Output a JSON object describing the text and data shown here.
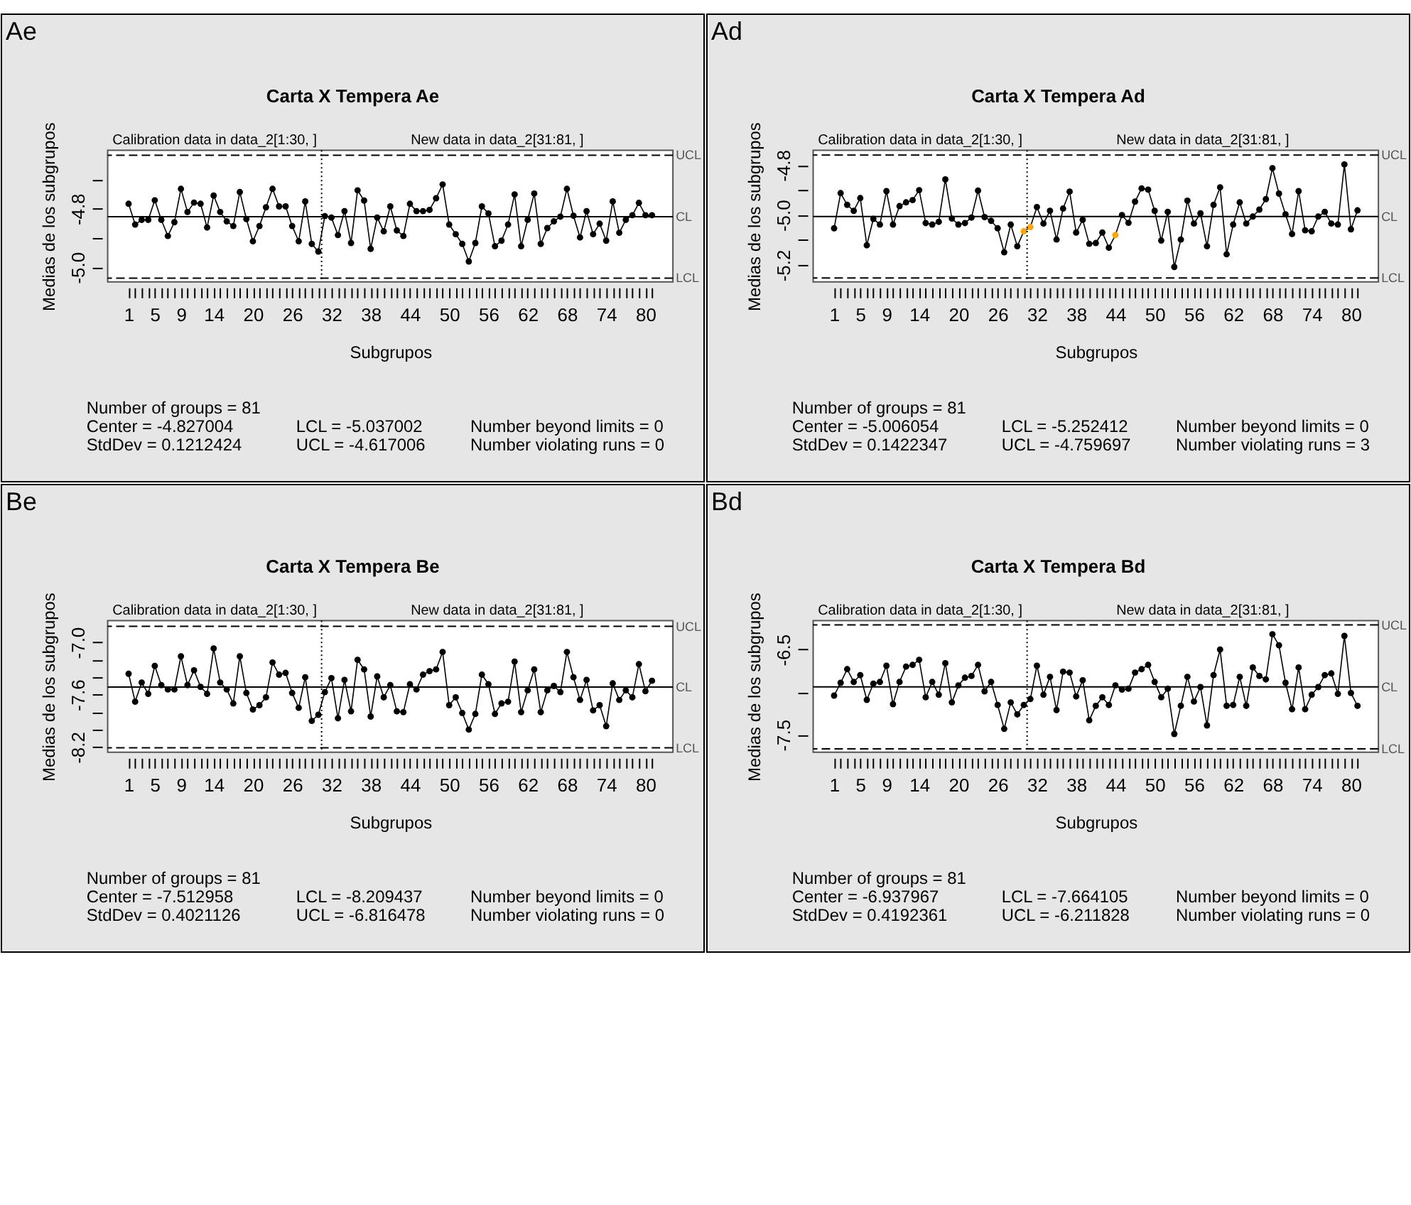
{
  "chart_data": [
    {
      "type": "line",
      "title": "Carta X Tempera Ae",
      "xlabel": "Subgrupos",
      "ylabel": "Medias de los subgrupos",
      "marker": "circle",
      "line_style": "solid",
      "x": [
        1,
        2,
        3,
        4,
        5,
        6,
        7,
        8,
        9,
        10,
        11,
        12,
        13,
        14,
        15,
        16,
        17,
        18,
        19,
        20,
        21,
        22,
        23,
        24,
        25,
        26,
        27,
        28,
        29,
        30,
        31,
        32,
        33,
        34,
        35,
        36,
        37,
        38,
        39,
        40,
        41,
        42,
        43,
        44,
        45,
        46,
        47,
        48,
        49,
        50,
        51,
        52,
        53,
        54,
        55,
        56,
        57,
        58,
        59,
        60,
        61,
        62,
        63,
        64,
        65,
        66,
        67,
        68,
        69,
        70,
        71,
        72,
        73,
        74,
        75,
        76,
        77,
        78,
        79,
        80,
        81
      ],
      "xlim": [
        -2.2,
        84.2
      ],
      "xticks": [
        1,
        {
          "value": 2,
          "label": null
        },
        {
          "value": 3,
          "label": null
        },
        {
          "value": 4,
          "label": null
        },
        5,
        {
          "value": 6,
          "label": null
        },
        {
          "value": 7,
          "label": null
        },
        {
          "value": 8,
          "label": null
        },
        9,
        {
          "value": 10,
          "label": null
        },
        {
          "value": 11,
          "label": null
        },
        {
          "value": 12,
          "label": null
        },
        {
          "value": 13,
          "label": null
        },
        14,
        {
          "value": 15,
          "label": null
        },
        {
          "value": 16,
          "label": null
        },
        {
          "value": 17,
          "label": null
        },
        {
          "value": 18,
          "label": null
        },
        {
          "value": 19,
          "label": null
        },
        20,
        {
          "value": 21,
          "label": null
        },
        {
          "value": 22,
          "label": null
        },
        {
          "value": 23,
          "label": null
        },
        {
          "value": 24,
          "label": null
        },
        {
          "value": 25,
          "label": null
        },
        26,
        {
          "value": 27,
          "label": null
        },
        {
          "value": 28,
          "label": null
        },
        {
          "value": 29,
          "label": null
        },
        {
          "value": 30,
          "label": null
        },
        {
          "value": 31,
          "label": null
        },
        32,
        {
          "value": 33,
          "label": null
        },
        {
          "value": 34,
          "label": null
        },
        {
          "value": 35,
          "label": null
        },
        {
          "value": 36,
          "label": null
        },
        {
          "value": 37,
          "label": null
        },
        38,
        {
          "value": 39,
          "label": null
        },
        {
          "value": 40,
          "label": null
        },
        {
          "value": 41,
          "label": null
        },
        {
          "value": 42,
          "label": null
        },
        {
          "value": 43,
          "label": null
        },
        44,
        {
          "value": 45,
          "label": null
        },
        {
          "value": 46,
          "label": null
        },
        {
          "value": 47,
          "label": null
        },
        {
          "value": 48,
          "label": null
        },
        {
          "value": 49,
          "label": null
        },
        50,
        {
          "value": 51,
          "label": null
        },
        {
          "value": 52,
          "label": null
        },
        {
          "value": 53,
          "label": null
        },
        {
          "value": 54,
          "label": null
        },
        {
          "value": 55,
          "label": null
        },
        56,
        {
          "value": 57,
          "label": null
        },
        {
          "value": 58,
          "label": null
        },
        {
          "value": 59,
          "label": null
        },
        {
          "value": 60,
          "label": null
        },
        {
          "value": 61,
          "label": null
        },
        62,
        {
          "value": 63,
          "label": null
        },
        {
          "value": 64,
          "label": null
        },
        {
          "value": 65,
          "label": null
        },
        {
          "value": 66,
          "label": null
        },
        {
          "value": 67,
          "label": null
        },
        68,
        {
          "value": 69,
          "label": null
        },
        {
          "value": 70,
          "label": null
        },
        {
          "value": 71,
          "label": null
        },
        {
          "value": 72,
          "label": null
        },
        {
          "value": 73,
          "label": null
        },
        74,
        {
          "value": 75,
          "label": null
        },
        {
          "value": 76,
          "label": null
        },
        {
          "value": 77,
          "label": null
        },
        {
          "value": 78,
          "label": null
        },
        {
          "value": 79,
          "label": null
        },
        80,
        {
          "value": 81,
          "label": null
        }
      ],
      "ylim": [
        -5.05,
        -4.6
      ],
      "yticks": [
        {
          "value": -4.7,
          "label": null
        },
        -4.8,
        {
          "value": -4.9,
          "label": null
        },
        {
          "value": -5.0,
          "label": "-5.0"
        }
      ],
      "ref_lines": [
        {
          "axis": "y",
          "value": -4.827004,
          "label": "CL",
          "line_style": "solid",
          "color": "#000000"
        },
        {
          "axis": "y",
          "value": -4.617006,
          "label": "UCL",
          "line_style": "dashed",
          "color": "#000000"
        },
        {
          "axis": "y",
          "value": -5.037002,
          "label": "LCL",
          "line_style": "dashed",
          "color": "#000000"
        },
        {
          "axis": "x",
          "value": 30.5,
          "line_style": "dotted",
          "color": "#000000"
        }
      ],
      "annotations": [
        "Ae",
        "Calibration data in data_2[1:30, ]",
        "New data in data_2[31:81, ]",
        "Number of groups = 81",
        "Center = -4.827004",
        "StdDev = 0.1212424",
        "LCL = -5.037002",
        "UCL = -4.617006",
        "Number beyond limits = 0",
        "Number violating runs = 0"
      ],
      "series": [
        {
          "color": "#000000",
          "values": [
            -4.783,
            -4.854,
            -4.838,
            -4.838,
            -4.771,
            -4.838,
            -4.893,
            -4.846,
            -4.732,
            -4.811,
            -4.779,
            -4.783,
            -4.864,
            -4.755,
            -4.811,
            -4.843,
            -4.859,
            -4.743,
            -4.835,
            -4.911,
            -4.859,
            -4.795,
            -4.732,
            -4.792,
            -4.792,
            -4.859,
            -4.911,
            -4.775,
            -4.92,
            -4.946,
            -4.825,
            -4.83,
            -4.89,
            -4.808,
            -4.917,
            -4.737,
            -4.772,
            -4.937,
            -4.83,
            -4.877,
            -4.792,
            -4.874,
            -4.893,
            -4.783,
            -4.808,
            -4.808,
            -4.804,
            -4.764,
            -4.717,
            -4.854,
            -4.887,
            -4.92,
            -4.98,
            -4.917,
            -4.792,
            -4.816,
            -4.928,
            -4.909,
            -4.854,
            -4.751,
            -4.928,
            -4.838,
            -4.748,
            -4.92,
            -4.866,
            -4.843,
            -4.827,
            -4.732,
            -4.824,
            -4.898,
            -4.808,
            -4.887,
            -4.851,
            -4.909,
            -4.775,
            -4.882,
            -4.838,
            -4.822,
            -4.78,
            -4.822,
            -4.822
          ]
        }
      ]
    },
    {
      "type": "line",
      "title": "Carta X Tempera Ad",
      "xlabel": "Subgrupos",
      "ylabel": "Medias de los subgrupos",
      "marker": "circle",
      "line_style": "solid",
      "x": [
        1,
        2,
        3,
        4,
        5,
        6,
        7,
        8,
        9,
        10,
        11,
        12,
        13,
        14,
        15,
        16,
        17,
        18,
        19,
        20,
        21,
        22,
        23,
        24,
        25,
        26,
        27,
        28,
        29,
        30,
        31,
        32,
        33,
        34,
        35,
        36,
        37,
        38,
        39,
        40,
        41,
        42,
        43,
        44,
        45,
        46,
        47,
        48,
        49,
        50,
        51,
        52,
        53,
        54,
        55,
        56,
        57,
        58,
        59,
        60,
        61,
        62,
        63,
        64,
        65,
        66,
        67,
        68,
        69,
        70,
        71,
        72,
        73,
        74,
        75,
        76,
        77,
        78,
        79,
        80,
        81
      ],
      "xlim": [
        -2.2,
        84.2
      ],
      "xticks": [
        1,
        {
          "value": 2,
          "label": null
        },
        {
          "value": 3,
          "label": null
        },
        {
          "value": 4,
          "label": null
        },
        5,
        {
          "value": 6,
          "label": null
        },
        {
          "value": 7,
          "label": null
        },
        {
          "value": 8,
          "label": null
        },
        9,
        {
          "value": 10,
          "label": null
        },
        {
          "value": 11,
          "label": null
        },
        {
          "value": 12,
          "label": null
        },
        {
          "value": 13,
          "label": null
        },
        14,
        {
          "value": 15,
          "label": null
        },
        {
          "value": 16,
          "label": null
        },
        {
          "value": 17,
          "label": null
        },
        {
          "value": 18,
          "label": null
        },
        {
          "value": 19,
          "label": null
        },
        20,
        {
          "value": 21,
          "label": null
        },
        {
          "value": 22,
          "label": null
        },
        {
          "value": 23,
          "label": null
        },
        {
          "value": 24,
          "label": null
        },
        {
          "value": 25,
          "label": null
        },
        26,
        {
          "value": 27,
          "label": null
        },
        {
          "value": 28,
          "label": null
        },
        {
          "value": 29,
          "label": null
        },
        {
          "value": 30,
          "label": null
        },
        {
          "value": 31,
          "label": null
        },
        32,
        {
          "value": 33,
          "label": null
        },
        {
          "value": 34,
          "label": null
        },
        {
          "value": 35,
          "label": null
        },
        {
          "value": 36,
          "label": null
        },
        {
          "value": 37,
          "label": null
        },
        38,
        {
          "value": 39,
          "label": null
        },
        {
          "value": 40,
          "label": null
        },
        {
          "value": 41,
          "label": null
        },
        {
          "value": 42,
          "label": null
        },
        {
          "value": 43,
          "label": null
        },
        44,
        {
          "value": 45,
          "label": null
        },
        {
          "value": 46,
          "label": null
        },
        {
          "value": 47,
          "label": null
        },
        {
          "value": 48,
          "label": null
        },
        {
          "value": 49,
          "label": null
        },
        50,
        {
          "value": 51,
          "label": null
        },
        {
          "value": 52,
          "label": null
        },
        {
          "value": 53,
          "label": null
        },
        {
          "value": 54,
          "label": null
        },
        {
          "value": 55,
          "label": null
        },
        56,
        {
          "value": 57,
          "label": null
        },
        {
          "value": 58,
          "label": null
        },
        {
          "value": 59,
          "label": null
        },
        {
          "value": 60,
          "label": null
        },
        {
          "value": 61,
          "label": null
        },
        62,
        {
          "value": 63,
          "label": null
        },
        {
          "value": 64,
          "label": null
        },
        {
          "value": 65,
          "label": null
        },
        {
          "value": 66,
          "label": null
        },
        {
          "value": 67,
          "label": null
        },
        68,
        {
          "value": 69,
          "label": null
        },
        {
          "value": 70,
          "label": null
        },
        {
          "value": 71,
          "label": null
        },
        {
          "value": 72,
          "label": null
        },
        {
          "value": 73,
          "label": null
        },
        74,
        {
          "value": 75,
          "label": null
        },
        {
          "value": 76,
          "label": null
        },
        {
          "value": 77,
          "label": null
        },
        {
          "value": 78,
          "label": null
        },
        {
          "value": 79,
          "label": null
        },
        80,
        {
          "value": 81,
          "label": null
        }
      ],
      "ylim": [
        -5.268,
        -4.74
      ],
      "yticks": [
        -4.8,
        {
          "value": -4.9,
          "label": null
        },
        {
          "value": -5.0,
          "label": "-5.0"
        },
        {
          "value": -5.1,
          "label": null
        },
        -5.2
      ],
      "ref_lines": [
        {
          "axis": "y",
          "value": -5.006054,
          "label": "CL",
          "line_style": "solid",
          "color": "#000000"
        },
        {
          "axis": "y",
          "value": -4.759697,
          "label": "UCL",
          "line_style": "dashed",
          "color": "#000000"
        },
        {
          "axis": "y",
          "value": -5.252412,
          "label": "LCL",
          "line_style": "dashed",
          "color": "#000000"
        },
        {
          "axis": "x",
          "value": 30.5,
          "line_style": "dotted",
          "color": "#000000"
        }
      ],
      "annotations": [
        "Ad",
        "Calibration data in data_2[1:30, ]",
        "New data in data_2[31:81, ]",
        "Number of groups = 81",
        "Center = -5.006054",
        "StdDev = 0.1422347",
        "LCL = -5.252412",
        "UCL = -4.759697",
        "Number beyond limits = 0",
        "Number violating runs = 3"
      ],
      "series": [
        {
          "color": "#000000",
          "values": [
            -5.053,
            -4.912,
            -4.959,
            -4.983,
            -4.932,
            -5.121,
            -5.015,
            -5.038,
            -4.904,
            -5.038,
            -4.964,
            -4.949,
            -4.94,
            -4.9,
            -5.032,
            -5.038,
            -5.027,
            -4.857,
            -5.014,
            -5.038,
            -5.032,
            -5.01,
            -4.902,
            -5.008,
            -5.023,
            -5.053,
            -5.149,
            -5.038,
            -5.125,
            -5.065,
            -5.048,
            -4.968,
            -5.034,
            -4.983,
            -5.098,
            -4.974,
            -4.906,
            -5.07,
            -5.019,
            -5.115,
            -5.112,
            -5.07,
            -5.131,
            -5.08,
            -5.0,
            -5.031,
            -4.946,
            -4.893,
            -4.898,
            -4.983,
            -5.102,
            -4.987,
            -5.208,
            -5.098,
            -4.942,
            -5.034,
            -4.993,
            -5.125,
            -4.959,
            -4.889,
            -5.157,
            -5.038,
            -4.949,
            -5.034,
            -5.006,
            -4.978,
            -4.936,
            -4.812,
            -4.914,
            -4.997,
            -5.076,
            -4.904,
            -5.061,
            -5.065,
            -5.006,
            -4.987,
            -5.034,
            -5.038,
            -4.797,
            -5.057,
            -4.981
          ],
          "colors": [
            "#000000",
            "#000000",
            "#000000",
            "#000000",
            "#000000",
            "#000000",
            "#000000",
            "#000000",
            "#000000",
            "#000000",
            "#000000",
            "#000000",
            "#000000",
            "#000000",
            "#000000",
            "#000000",
            "#000000",
            "#000000",
            "#000000",
            "#000000",
            "#000000",
            "#000000",
            "#000000",
            "#000000",
            "#000000",
            "#000000",
            "#000000",
            "#000000",
            "#000000",
            "#ffa500",
            "#ffa500",
            "#000000",
            "#000000",
            "#000000",
            "#000000",
            "#000000",
            "#000000",
            "#000000",
            "#000000",
            "#000000",
            "#000000",
            "#000000",
            "#000000",
            "#ffa500",
            "#000000",
            "#000000",
            "#000000",
            "#000000",
            "#000000",
            "#000000",
            "#000000",
            "#000000",
            "#000000",
            "#000000",
            "#000000",
            "#000000",
            "#000000",
            "#000000",
            "#000000",
            "#000000",
            "#000000",
            "#000000",
            "#000000",
            "#000000",
            "#000000",
            "#000000",
            "#000000",
            "#000000",
            "#000000",
            "#000000",
            "#000000",
            "#000000",
            "#000000",
            "#000000",
            "#000000",
            "#000000",
            "#000000",
            "#000000",
            "#000000",
            "#000000",
            "#000000"
          ]
        }
      ]
    },
    {
      "type": "line",
      "title": "Carta X Tempera Be",
      "xlabel": "Subgrupos",
      "ylabel": "Medias de los subgrupos",
      "marker": "circle",
      "line_style": "solid",
      "x": [
        1,
        2,
        3,
        4,
        5,
        6,
        7,
        8,
        9,
        10,
        11,
        12,
        13,
        14,
        15,
        16,
        17,
        18,
        19,
        20,
        21,
        22,
        23,
        24,
        25,
        26,
        27,
        28,
        29,
        30,
        31,
        32,
        33,
        34,
        35,
        36,
        37,
        38,
        39,
        40,
        41,
        42,
        43,
        44,
        45,
        46,
        47,
        48,
        49,
        50,
        51,
        52,
        53,
        54,
        55,
        56,
        57,
        58,
        59,
        60,
        61,
        62,
        63,
        64,
        65,
        66,
        67,
        68,
        69,
        70,
        71,
        72,
        73,
        74,
        75,
        76,
        77,
        78,
        79,
        80,
        81
      ],
      "xlim": [
        -2.2,
        84.2
      ],
      "xticks": [
        1,
        {
          "value": 2,
          "label": null
        },
        {
          "value": 3,
          "label": null
        },
        {
          "value": 4,
          "label": null
        },
        5,
        {
          "value": 6,
          "label": null
        },
        {
          "value": 7,
          "label": null
        },
        {
          "value": 8,
          "label": null
        },
        9,
        {
          "value": 10,
          "label": null
        },
        {
          "value": 11,
          "label": null
        },
        {
          "value": 12,
          "label": null
        },
        {
          "value": 13,
          "label": null
        },
        14,
        {
          "value": 15,
          "label": null
        },
        {
          "value": 16,
          "label": null
        },
        {
          "value": 17,
          "label": null
        },
        {
          "value": 18,
          "label": null
        },
        {
          "value": 19,
          "label": null
        },
        20,
        {
          "value": 21,
          "label": null
        },
        {
          "value": 22,
          "label": null
        },
        {
          "value": 23,
          "label": null
        },
        {
          "value": 24,
          "label": null
        },
        {
          "value": 25,
          "label": null
        },
        26,
        {
          "value": 27,
          "label": null
        },
        {
          "value": 28,
          "label": null
        },
        {
          "value": 29,
          "label": null
        },
        {
          "value": 30,
          "label": null
        },
        {
          "value": 31,
          "label": null
        },
        32,
        {
          "value": 33,
          "label": null
        },
        {
          "value": 34,
          "label": null
        },
        {
          "value": 35,
          "label": null
        },
        {
          "value": 36,
          "label": null
        },
        {
          "value": 37,
          "label": null
        },
        38,
        {
          "value": 39,
          "label": null
        },
        {
          "value": 40,
          "label": null
        },
        {
          "value": 41,
          "label": null
        },
        {
          "value": 42,
          "label": null
        },
        {
          "value": 43,
          "label": null
        },
        44,
        {
          "value": 45,
          "label": null
        },
        {
          "value": 46,
          "label": null
        },
        {
          "value": 47,
          "label": null
        },
        {
          "value": 48,
          "label": null
        },
        {
          "value": 49,
          "label": null
        },
        50,
        {
          "value": 51,
          "label": null
        },
        {
          "value": 52,
          "label": null
        },
        {
          "value": 53,
          "label": null
        },
        {
          "value": 54,
          "label": null
        },
        {
          "value": 55,
          "label": null
        },
        56,
        {
          "value": 57,
          "label": null
        },
        {
          "value": 58,
          "label": null
        },
        {
          "value": 59,
          "label": null
        },
        {
          "value": 60,
          "label": null
        },
        {
          "value": 61,
          "label": null
        },
        62,
        {
          "value": 63,
          "label": null
        },
        {
          "value": 64,
          "label": null
        },
        {
          "value": 65,
          "label": null
        },
        {
          "value": 66,
          "label": null
        },
        {
          "value": 67,
          "label": null
        },
        68,
        {
          "value": 69,
          "label": null
        },
        {
          "value": 70,
          "label": null
        },
        {
          "value": 71,
          "label": null
        },
        {
          "value": 72,
          "label": null
        },
        {
          "value": 73,
          "label": null
        },
        74,
        {
          "value": 75,
          "label": null
        },
        {
          "value": 76,
          "label": null
        },
        {
          "value": 77,
          "label": null
        },
        {
          "value": 78,
          "label": null
        },
        {
          "value": 79,
          "label": null
        },
        80,
        {
          "value": 81,
          "label": null
        }
      ],
      "ylim": [
        -8.26,
        -6.75
      ],
      "yticks": [
        {
          "value": -7.0,
          "label": "-7.0"
        },
        {
          "value": -7.2,
          "label": null
        },
        {
          "value": -7.4,
          "label": null
        },
        -7.6,
        {
          "value": -7.8,
          "label": null
        },
        {
          "value": -8.0,
          "label": null
        },
        -8.2
      ],
      "ref_lines": [
        {
          "axis": "y",
          "value": -7.512958,
          "label": "CL",
          "line_style": "solid",
          "color": "#000000"
        },
        {
          "axis": "y",
          "value": -6.816478,
          "label": "UCL",
          "line_style": "dashed",
          "color": "#000000"
        },
        {
          "axis": "y",
          "value": -8.209437,
          "label": "LCL",
          "line_style": "dashed",
          "color": "#000000"
        },
        {
          "axis": "x",
          "value": 30.5,
          "line_style": "dotted",
          "color": "#000000"
        }
      ],
      "annotations": [
        "Be",
        "Calibration data in data_2[1:30, ]",
        "New data in data_2[31:81, ]",
        "Number of groups = 81",
        "Center = -7.512958",
        "StdDev = 0.4021126",
        "LCL = -8.209437",
        "UCL = -6.816478",
        "Number beyond limits = 0",
        "Number violating runs = 0"
      ],
      "series": [
        {
          "color": "#000000",
          "values": [
            -7.36,
            -7.68,
            -7.46,
            -7.59,
            -7.27,
            -7.49,
            -7.54,
            -7.54,
            -7.16,
            -7.49,
            -7.32,
            -7.51,
            -7.59,
            -7.07,
            -7.46,
            -7.54,
            -7.7,
            -7.16,
            -7.58,
            -7.77,
            -7.72,
            -7.63,
            -7.23,
            -7.37,
            -7.35,
            -7.58,
            -7.75,
            -7.4,
            -7.9,
            -7.83,
            -7.57,
            -7.41,
            -7.87,
            -7.43,
            -7.79,
            -7.2,
            -7.31,
            -7.85,
            -7.39,
            -7.63,
            -7.49,
            -7.79,
            -7.8,
            -7.48,
            -7.54,
            -7.37,
            -7.33,
            -7.31,
            -7.11,
            -7.72,
            -7.63,
            -7.81,
            -8.0,
            -7.82,
            -7.37,
            -7.48,
            -7.82,
            -7.7,
            -7.68,
            -7.22,
            -7.8,
            -7.55,
            -7.31,
            -7.8,
            -7.55,
            -7.5,
            -7.57,
            -7.11,
            -7.4,
            -7.66,
            -7.43,
            -7.78,
            -7.72,
            -7.96,
            -7.47,
            -7.66,
            -7.55,
            -7.63,
            -7.25,
            -7.56,
            -7.44
          ]
        }
      ]
    },
    {
      "type": "line",
      "title": "Carta X Tempera Bd",
      "xlabel": "Subgrupos",
      "ylabel": "Medias de los subgrupos",
      "marker": "circle",
      "line_style": "solid",
      "x": [
        1,
        2,
        3,
        4,
        5,
        6,
        7,
        8,
        9,
        10,
        11,
        12,
        13,
        14,
        15,
        16,
        17,
        18,
        19,
        20,
        21,
        22,
        23,
        24,
        25,
        26,
        27,
        28,
        29,
        30,
        31,
        32,
        33,
        34,
        35,
        36,
        37,
        38,
        39,
        40,
        41,
        42,
        43,
        44,
        45,
        46,
        47,
        48,
        49,
        50,
        51,
        52,
        53,
        54,
        55,
        56,
        57,
        58,
        59,
        60,
        61,
        62,
        63,
        64,
        65,
        66,
        67,
        68,
        69,
        70,
        71,
        72,
        73,
        74,
        75,
        76,
        77,
        78,
        79,
        80,
        81
      ],
      "xlim": [
        -2.2,
        84.2
      ],
      "xticks": [
        1,
        {
          "value": 2,
          "label": null
        },
        {
          "value": 3,
          "label": null
        },
        {
          "value": 4,
          "label": null
        },
        5,
        {
          "value": 6,
          "label": null
        },
        {
          "value": 7,
          "label": null
        },
        {
          "value": 8,
          "label": null
        },
        9,
        {
          "value": 10,
          "label": null
        },
        {
          "value": 11,
          "label": null
        },
        {
          "value": 12,
          "label": null
        },
        {
          "value": 13,
          "label": null
        },
        14,
        {
          "value": 15,
          "label": null
        },
        {
          "value": 16,
          "label": null
        },
        {
          "value": 17,
          "label": null
        },
        {
          "value": 18,
          "label": null
        },
        {
          "value": 19,
          "label": null
        },
        20,
        {
          "value": 21,
          "label": null
        },
        {
          "value": 22,
          "label": null
        },
        {
          "value": 23,
          "label": null
        },
        {
          "value": 24,
          "label": null
        },
        {
          "value": 25,
          "label": null
        },
        26,
        {
          "value": 27,
          "label": null
        },
        {
          "value": 28,
          "label": null
        },
        {
          "value": 29,
          "label": null
        },
        {
          "value": 30,
          "label": null
        },
        {
          "value": 31,
          "label": null
        },
        32,
        {
          "value": 33,
          "label": null
        },
        {
          "value": 34,
          "label": null
        },
        {
          "value": 35,
          "label": null
        },
        {
          "value": 36,
          "label": null
        },
        {
          "value": 37,
          "label": null
        },
        38,
        {
          "value": 39,
          "label": null
        },
        {
          "value": 40,
          "label": null
        },
        {
          "value": 41,
          "label": null
        },
        {
          "value": 42,
          "label": null
        },
        {
          "value": 43,
          "label": null
        },
        44,
        {
          "value": 45,
          "label": null
        },
        {
          "value": 46,
          "label": null
        },
        {
          "value": 47,
          "label": null
        },
        {
          "value": 48,
          "label": null
        },
        {
          "value": 49,
          "label": null
        },
        50,
        {
          "value": 51,
          "label": null
        },
        {
          "value": 52,
          "label": null
        },
        {
          "value": 53,
          "label": null
        },
        {
          "value": 54,
          "label": null
        },
        {
          "value": 55,
          "label": null
        },
        56,
        {
          "value": 57,
          "label": null
        },
        {
          "value": 58,
          "label": null
        },
        {
          "value": 59,
          "label": null
        },
        {
          "value": 60,
          "label": null
        },
        {
          "value": 61,
          "label": null
        },
        62,
        {
          "value": 63,
          "label": null
        },
        {
          "value": 64,
          "label": null
        },
        {
          "value": 65,
          "label": null
        },
        {
          "value": 66,
          "label": null
        },
        {
          "value": 67,
          "label": null
        },
        68,
        {
          "value": 69,
          "label": null
        },
        {
          "value": 70,
          "label": null
        },
        {
          "value": 71,
          "label": null
        },
        {
          "value": 72,
          "label": null
        },
        {
          "value": 73,
          "label": null
        },
        74,
        {
          "value": 75,
          "label": null
        },
        {
          "value": 76,
          "label": null
        },
        {
          "value": 77,
          "label": null
        },
        {
          "value": 78,
          "label": null
        },
        {
          "value": 79,
          "label": null
        },
        80,
        {
          "value": 81,
          "label": null
        }
      ],
      "ylim": [
        -7.705,
        -6.16
      ],
      "yticks": [
        -6.5,
        {
          "value": -7.0,
          "label": null
        },
        -7.5
      ],
      "ref_lines": [
        {
          "axis": "y",
          "value": -6.937967,
          "label": "CL",
          "line_style": "solid",
          "color": "#000000"
        },
        {
          "axis": "y",
          "value": -6.211828,
          "label": "UCL",
          "line_style": "dashed",
          "color": "#000000"
        },
        {
          "axis": "y",
          "value": -7.664105,
          "label": "LCL",
          "line_style": "dashed",
          "color": "#000000"
        },
        {
          "axis": "x",
          "value": 30.5,
          "line_style": "dotted",
          "color": "#000000"
        }
      ],
      "annotations": [
        "Bd",
        "Calibration data in data_2[1:30, ]",
        "New data in data_2[31:81, ]",
        "Number of groups = 81",
        "Center = -6.937967",
        "StdDev = 0.4192361",
        "LCL = -7.664105",
        "UCL = -6.211828",
        "Number beyond limits = 0",
        "Number violating runs = 0"
      ],
      "series": [
        {
          "color": "#000000",
          "values": [
            -7.04,
            -6.89,
            -6.73,
            -6.88,
            -6.8,
            -7.09,
            -6.9,
            -6.88,
            -6.69,
            -7.14,
            -6.88,
            -6.7,
            -6.68,
            -6.62,
            -7.06,
            -6.88,
            -7.03,
            -6.66,
            -7.12,
            -6.92,
            -6.83,
            -6.81,
            -6.68,
            -6.99,
            -6.88,
            -7.15,
            -7.43,
            -7.12,
            -7.26,
            -7.15,
            -7.08,
            -6.69,
            -7.03,
            -6.82,
            -7.21,
            -6.76,
            -6.77,
            -7.05,
            -6.86,
            -7.33,
            -7.16,
            -7.06,
            -7.15,
            -6.92,
            -6.97,
            -6.96,
            -6.77,
            -6.73,
            -6.68,
            -6.88,
            -7.06,
            -6.96,
            -7.49,
            -7.16,
            -6.82,
            -7.11,
            -6.94,
            -7.39,
            -6.8,
            -6.5,
            -7.16,
            -7.15,
            -6.82,
            -7.16,
            -6.71,
            -6.81,
            -6.85,
            -6.32,
            -6.45,
            -6.89,
            -7.2,
            -6.71,
            -7.2,
            -7.03,
            -6.94,
            -6.8,
            -6.78,
            -7.02,
            -6.34,
            -7.01,
            -7.16
          ]
        }
      ]
    }
  ]
}
